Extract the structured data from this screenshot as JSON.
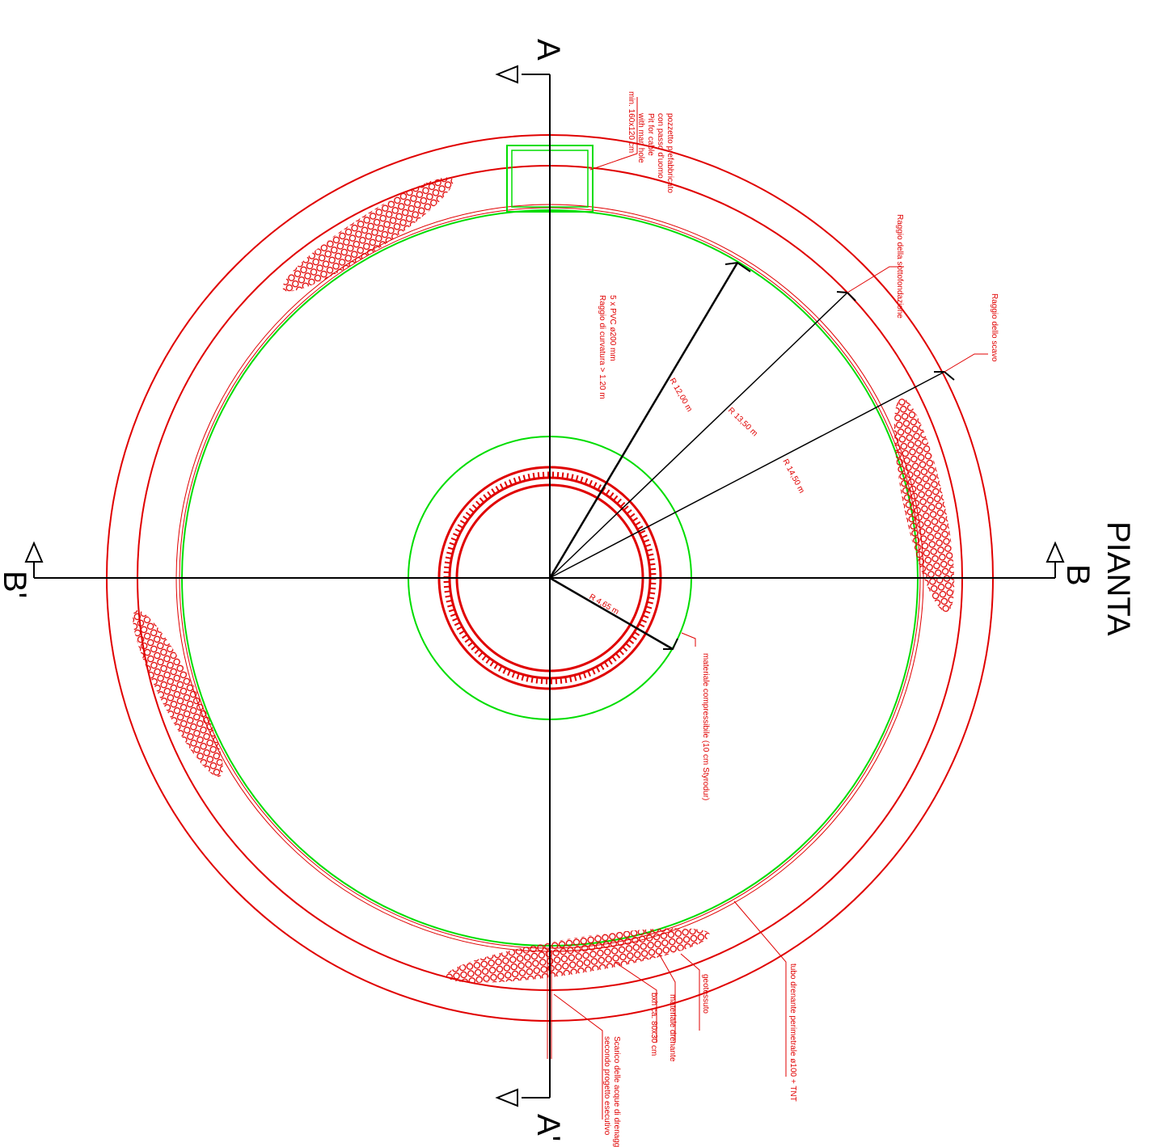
{
  "title": "PIANTA",
  "sections": {
    "a_top": "A",
    "a_bottom": "A'",
    "b_right": "B",
    "b_left": "B'"
  },
  "dimensions": {
    "r_inner": "R 4,65 m",
    "r_12": "R 12,00 m",
    "r_1350": "R 13,50 m",
    "r_1450": "R 14,50 m"
  },
  "notes": {
    "pit": [
      "pozzetto prefabbricato",
      "con passo d'uomo",
      "Pit for cable",
      "with man hole",
      "min. 160x120 cm"
    ],
    "raggio_sottofondazione": "Raggio della sottofondazione",
    "raggio_scavo": "Raggio dello scavo",
    "pvc": [
      "5 x PVC ø200 mm",
      "Raggio di curvatura > 1.20 m"
    ],
    "compressibile": "materiale compressibile (10 cm Styrodur)",
    "tubo_drenante": "tubo drenante perimetrale ø100 + TNT",
    "geotessuto": "geotessuto",
    "materiale_drenante": "materiale drenante",
    "bxh": "bxh ca. 80x30 cm",
    "scarico": [
      "Scarico delle acque di drenaggio",
      "secondo progetto esecutivo"
    ]
  },
  "colors": {
    "structure": "#e00000",
    "foundation": "#00dd00",
    "axes": "#000000"
  }
}
